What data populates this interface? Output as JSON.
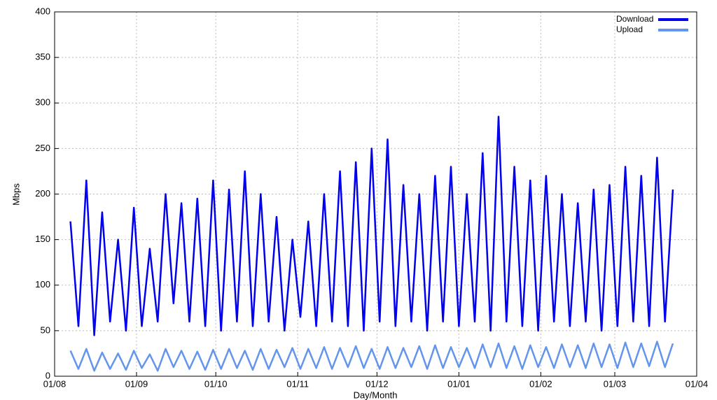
{
  "chart_data": {
    "type": "line",
    "xlabel": "Day/Month",
    "ylabel": "Mbps",
    "xlim": [
      0,
      243
    ],
    "ylim": [
      0,
      400
    ],
    "xticks": [
      {
        "value": 0,
        "label": "01/08"
      },
      {
        "value": 31,
        "label": "01/09"
      },
      {
        "value": 61,
        "label": "01/10"
      },
      {
        "value": 92,
        "label": "01/11"
      },
      {
        "value": 122,
        "label": "01/12"
      },
      {
        "value": 153,
        "label": "01/01"
      },
      {
        "value": 184,
        "label": "01/02"
      },
      {
        "value": 212,
        "label": "01/03"
      },
      {
        "value": 243,
        "label": "01/04"
      }
    ],
    "yticks": [
      0,
      50,
      100,
      150,
      200,
      250,
      300,
      350,
      400
    ],
    "grid": true,
    "legend": "upper right",
    "x": [
      6,
      9,
      12,
      15,
      18,
      21,
      24,
      27,
      30,
      33,
      36,
      39,
      42,
      45,
      48,
      51,
      54,
      57,
      60,
      63,
      66,
      69,
      72,
      75,
      78,
      81,
      84,
      87,
      90,
      93,
      96,
      99,
      102,
      105,
      108,
      111,
      114,
      117,
      120,
      123,
      126,
      129,
      132,
      135,
      138,
      141,
      144,
      147,
      150,
      153,
      156,
      159,
      162,
      165,
      168,
      171,
      174,
      177,
      180,
      183,
      186,
      189,
      192,
      195,
      198,
      201,
      204,
      207,
      210,
      213,
      216,
      219,
      222,
      225,
      228,
      231,
      234
    ],
    "series": [
      {
        "name": "Download",
        "color": "#0000ee",
        "values": [
          170,
          55,
          215,
          45,
          180,
          60,
          150,
          50,
          185,
          55,
          140,
          60,
          200,
          80,
          190,
          60,
          195,
          55,
          215,
          50,
          205,
          60,
          225,
          55,
          200,
          60,
          175,
          50,
          150,
          65,
          170,
          55,
          200,
          60,
          225,
          55,
          235,
          50,
          250,
          60,
          260,
          55,
          210,
          60,
          200,
          50,
          220,
          60,
          230,
          55,
          200,
          60,
          245,
          50,
          285,
          60,
          230,
          55,
          215,
          50,
          220,
          60,
          200,
          55,
          190,
          60,
          205,
          50,
          210,
          55,
          230,
          60,
          220,
          55,
          240,
          60,
          205
        ]
      },
      {
        "name": "Upload",
        "color": "#6495ed",
        "values": [
          28,
          8,
          30,
          6,
          26,
          8,
          25,
          7,
          28,
          9,
          24,
          6,
          30,
          10,
          28,
          8,
          27,
          7,
          29,
          8,
          30,
          9,
          28,
          7,
          30,
          8,
          29,
          10,
          31,
          8,
          30,
          9,
          32,
          8,
          31,
          10,
          33,
          9,
          30,
          8,
          32,
          9,
          31,
          10,
          33,
          8,
          34,
          9,
          32,
          10,
          31,
          9,
          35,
          10,
          36,
          9,
          33,
          8,
          34,
          10,
          32,
          9,
          35,
          10,
          34,
          9,
          36,
          10,
          35,
          9,
          37,
          10,
          36,
          11,
          38,
          10,
          36
        ]
      }
    ]
  }
}
